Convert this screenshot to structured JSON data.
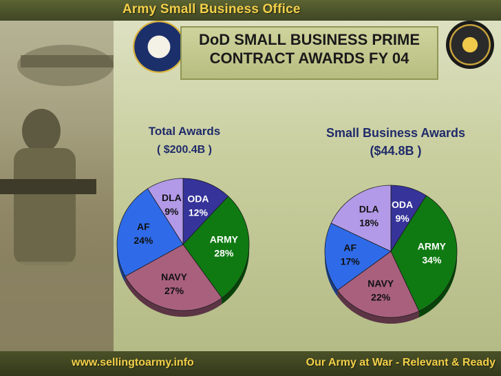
{
  "header": {
    "title": "Army Small Business Office"
  },
  "banner": {
    "title_line1": "DoD SMALL BUSINESS PRIME",
    "title_line2": "CONTRACT AWARDS FY 04"
  },
  "footer": {
    "website": "www.sellingtoarmy.info",
    "slogan": "Our Army at War - Relevant & Ready"
  },
  "colors": {
    "dla": "#b39ae8",
    "oda": "#36339a",
    "army": "#0f7a12",
    "navy": "#a8607d",
    "af": "#2f6be8",
    "title": "#1f2a6a",
    "accent": "#f3d04a"
  },
  "chart_data": [
    {
      "type": "pie",
      "title": "Total Awards",
      "subtitle": "( $200.4B )",
      "slices": [
        {
          "label": "ODA",
          "value": 12,
          "display": "12%"
        },
        {
          "label": "ARMY",
          "value": 28,
          "display": "28%"
        },
        {
          "label": "NAVY",
          "value": 27,
          "display": "27%"
        },
        {
          "label": "AF",
          "value": 24,
          "display": "24%"
        },
        {
          "label": "DLA",
          "value": 9,
          "display": "9%"
        }
      ]
    },
    {
      "type": "pie",
      "title": "Small Business Awards",
      "subtitle": "($44.8B )",
      "slices": [
        {
          "label": "ODA",
          "value": 9,
          "display": "9%"
        },
        {
          "label": "ARMY",
          "value": 34,
          "display": "34%"
        },
        {
          "label": "NAVY",
          "value": 22,
          "display": "22%"
        },
        {
          "label": "AF",
          "value": 17,
          "display": "17%"
        },
        {
          "label": "DLA",
          "value": 18,
          "display": "18%"
        }
      ]
    }
  ]
}
